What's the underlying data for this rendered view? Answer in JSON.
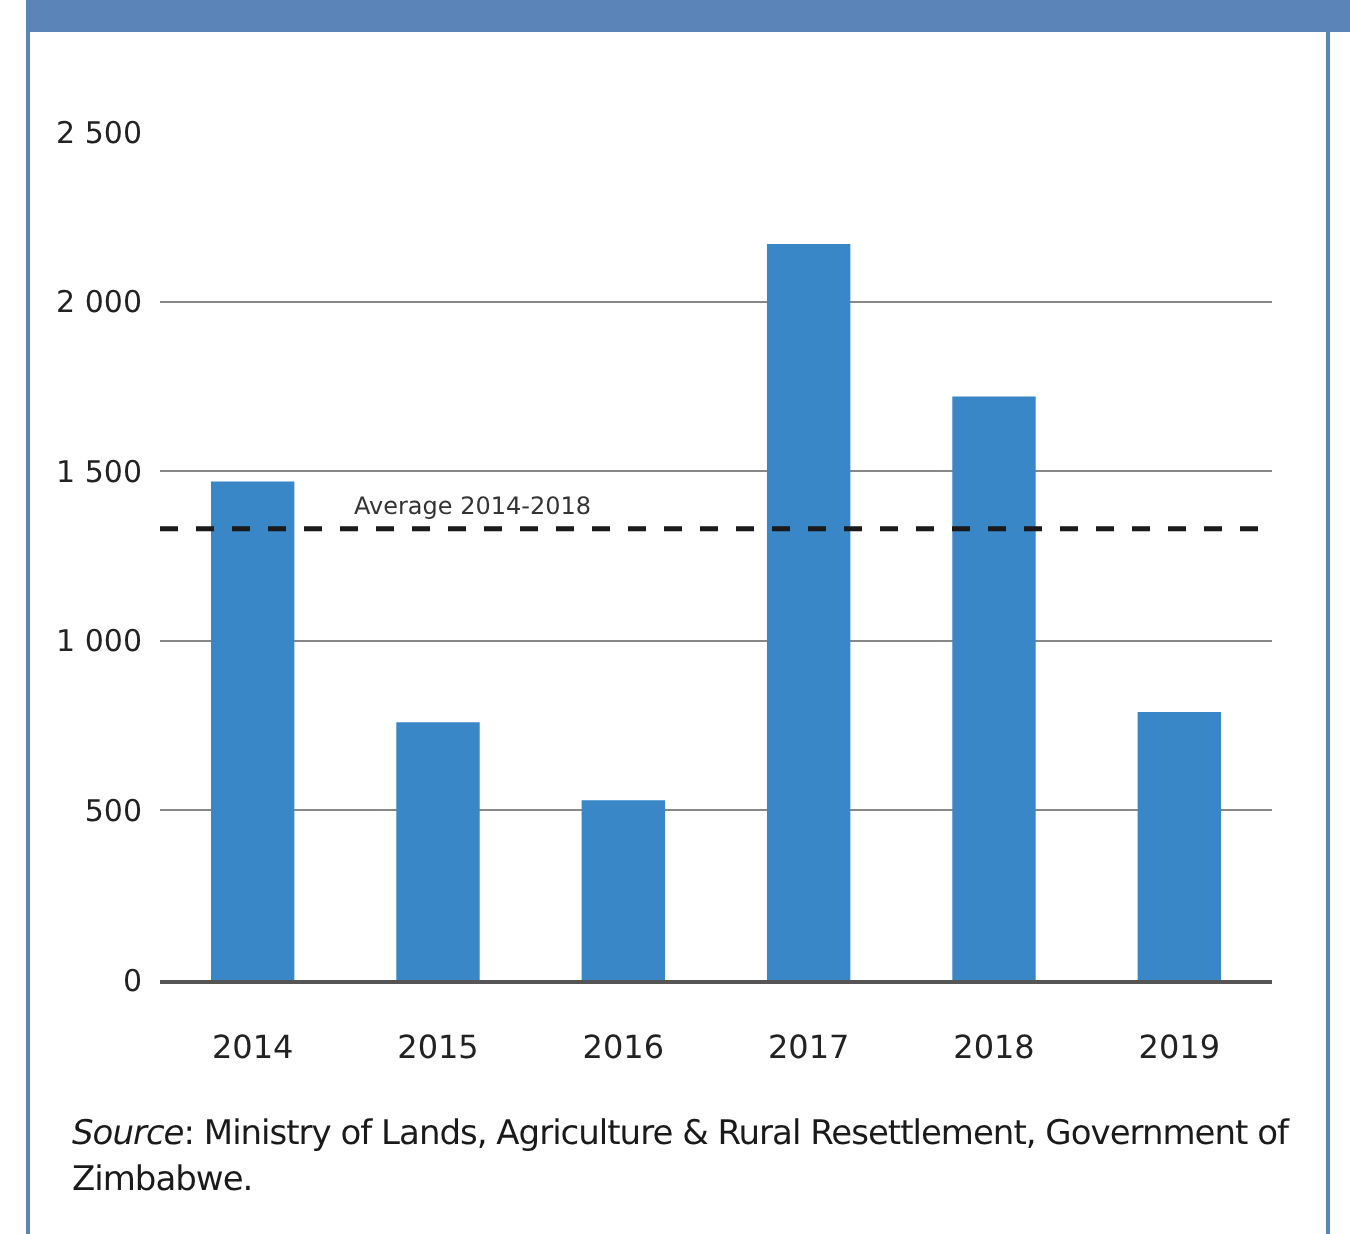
{
  "chart_data": {
    "type": "bar",
    "categories": [
      "2014",
      "2015",
      "2016",
      "2017",
      "2018",
      "2019"
    ],
    "values": [
      1470,
      760,
      530,
      2170,
      1720,
      790
    ],
    "color": "#3a87c8",
    "ylim": [
      0,
      2500
    ],
    "yticks": [
      0,
      500,
      {
        "value": 1000,
        "label": "1 000"
      },
      {
        "value": 1500,
        "label": "1 500"
      },
      {
        "value": 2000,
        "label": "2 000"
      },
      {
        "value": 2500,
        "label": "2 500"
      }
    ],
    "grid": "y",
    "ref_lines": [
      {
        "axis": "y",
        "value": 1330,
        "label": "Average 2014-2018",
        "color": "#1a1a1a",
        "line_style": "dashed"
      }
    ],
    "annotations": [
      "Source: Ministry of Lands, Agriculture & Rural Resettlement, Government of Zimbabwe."
    ]
  }
}
